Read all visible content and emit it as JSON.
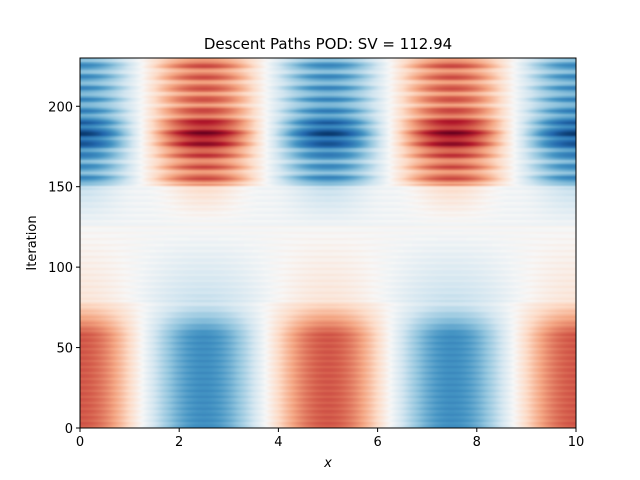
{
  "chart_data": {
    "type": "heatmap",
    "title": "Descent Paths POD: SV = 112.94",
    "xlabel": "x",
    "ylabel": "Iteration",
    "xlim": [
      0,
      10
    ],
    "ylim": [
      0,
      230
    ],
    "x_ticks": [
      0,
      2,
      4,
      6,
      8,
      10
    ],
    "x_tick_labels": [
      "0",
      "2",
      "4",
      "6",
      "8",
      "10"
    ],
    "y_ticks": [
      0,
      50,
      100,
      150,
      200
    ],
    "y_tick_labels": [
      "0",
      "50",
      "100",
      "150",
      "200"
    ],
    "colormap": "RdBu_r",
    "color_range": [
      -1,
      1
    ],
    "grid": false,
    "colors": {
      "low": "#053061",
      "mid": "#f7f7f7",
      "high": "#67001f",
      "axis": "#000000",
      "background": "#ffffff"
    }
  }
}
